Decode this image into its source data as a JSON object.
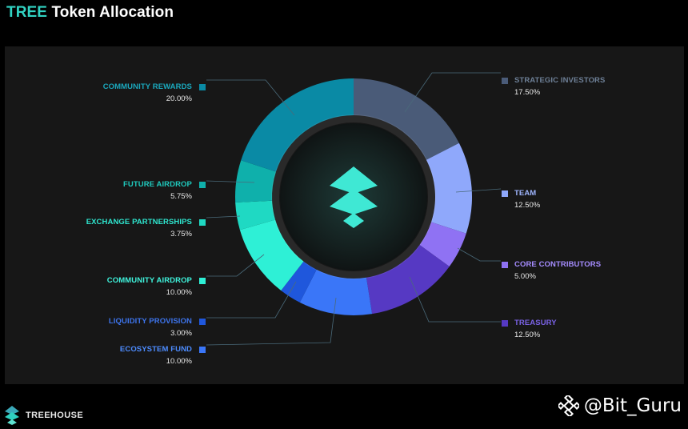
{
  "header": {
    "title_accent": "TREE",
    "title_rest": "Token Allocation"
  },
  "footer": {
    "brand": "TREEHOUSE",
    "watermark": "@Bit_Guru"
  },
  "colors": {
    "background": "#000000",
    "panel": "#171717",
    "accent": "#31d3c3",
    "leader_line": "#4a6a7a"
  },
  "chart_data": {
    "type": "pie",
    "variant": "donut",
    "title": "",
    "slices": [
      {
        "label": "STRATEGIC INVESTORS",
        "value": 17.5,
        "display": "17.50%",
        "color": "#4a5b78",
        "side": "right"
      },
      {
        "label": "TEAM",
        "value": 12.5,
        "display": "12.50%",
        "color": "#8fa8fb",
        "side": "right"
      },
      {
        "label": "CORE CONTRIBUTORS",
        "value": 5.0,
        "display": "5.00%",
        "color": "#8f72f3",
        "side": "right"
      },
      {
        "label": "TREASURY",
        "value": 12.5,
        "display": "12.50%",
        "color": "#5639c3",
        "side": "right"
      },
      {
        "label": "ECOSYSTEM FUND",
        "value": 10.0,
        "display": "10.00%",
        "color": "#3a76f8",
        "side": "left"
      },
      {
        "label": "LIQUIDITY PROVISION",
        "value": 3.0,
        "display": "3.00%",
        "color": "#1f57dc",
        "side": "left"
      },
      {
        "label": "COMMUNITY AIRDROP",
        "value": 10.0,
        "display": "10.00%",
        "color": "#2ef0d6",
        "side": "left"
      },
      {
        "label": "EXCHANGE PARTNERSHIPS",
        "value": 3.75,
        "display": "3.75%",
        "color": "#1fd9c3",
        "side": "left"
      },
      {
        "label": "FUTURE AIRDROP",
        "value": 5.75,
        "display": "5.75%",
        "color": "#0fb0ab",
        "side": "left"
      },
      {
        "label": "COMMUNITY REWARDS",
        "value": 20.0,
        "display": "20.00%",
        "color": "#0a8aa5",
        "side": "left"
      }
    ],
    "label_colors": {
      "STRATEGIC INVESTORS": "#6d7f96",
      "TEAM": "#9fb6ff",
      "CORE CONTRIBUTORS": "#a58cff",
      "TREASURY": "#7a62e6",
      "ECOSYSTEM FUND": "#4d8cff",
      "LIQUIDITY PROVISION": "#3d74ec",
      "COMMUNITY AIRDROP": "#3ff3dc",
      "EXCHANGE PARTNERSHIPS": "#2ee6cf",
      "FUTURE AIRDROP": "#1fc9bd",
      "COMMUNITY REWARDS": "#1aa8bd"
    },
    "legend": "callouts",
    "grid": false
  }
}
